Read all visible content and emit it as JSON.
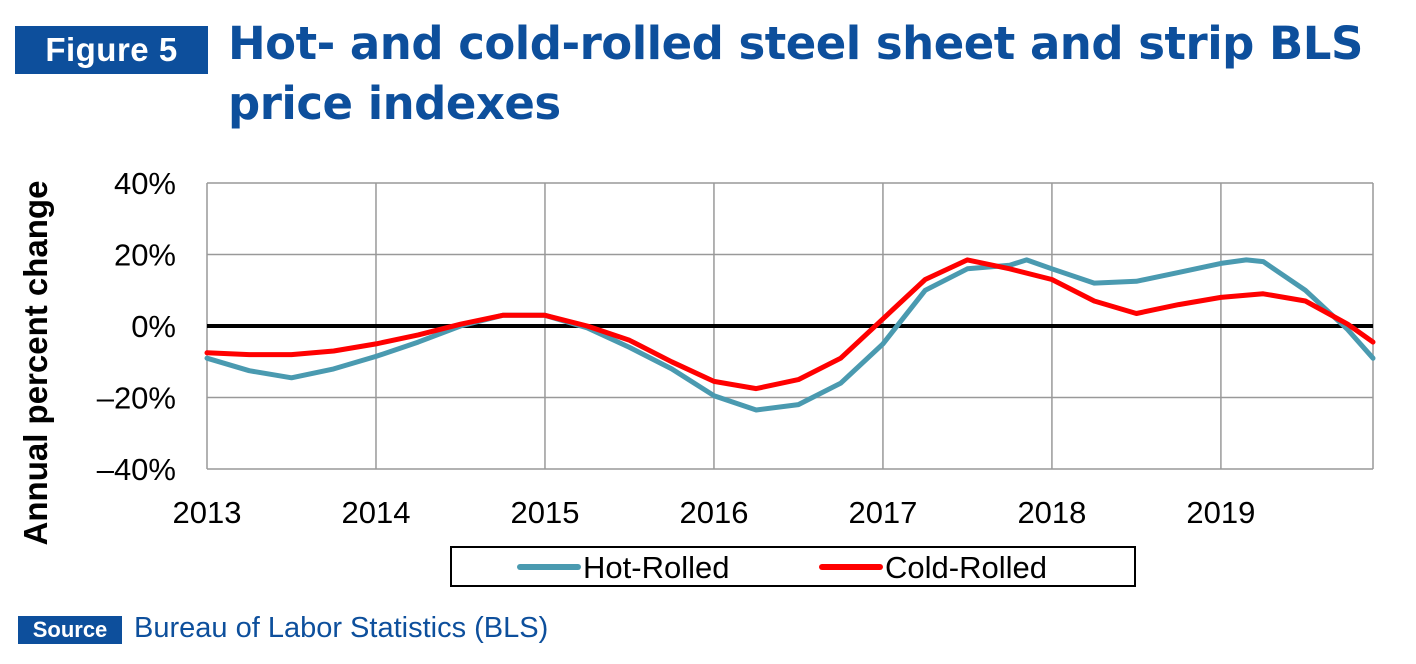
{
  "header": {
    "figure_label": "Figure 5",
    "title": "Hot- and cold-rolled steel sheet and strip BLS price indexes"
  },
  "footer": {
    "source_label": "Source",
    "source_text": "Bureau of Labor Statistics (BLS)"
  },
  "colors": {
    "brand": "#0d4f9c",
    "hot_rolled": "#4a9ab0",
    "cold_rolled": "#ff0000",
    "zero_line": "#000000",
    "grid": "#999999"
  },
  "chart_data": {
    "type": "line",
    "title": "",
    "ylabel": "Annual percent change",
    "xlabel": "",
    "xlim": [
      2013,
      2019.9
    ],
    "ylim": [
      -40,
      40
    ],
    "y_ticks": [
      40,
      20,
      0,
      -20,
      -40
    ],
    "y_tick_labels": [
      "40%",
      "20%",
      "0%",
      "–20%",
      "–40%"
    ],
    "x_ticks": [
      2013,
      2014,
      2015,
      2016,
      2017,
      2018,
      2019
    ],
    "x_tick_labels": [
      "2013",
      "2014",
      "2015",
      "2016",
      "2017",
      "2018",
      "2019"
    ],
    "grid": true,
    "legend_position": "bottom",
    "series": [
      {
        "name": "Hot-Rolled",
        "color": "#4a9ab0",
        "points": [
          [
            2013.0,
            -9
          ],
          [
            2013.25,
            -12.5
          ],
          [
            2013.5,
            -14.5
          ],
          [
            2013.75,
            -12
          ],
          [
            2014.0,
            -8.5
          ],
          [
            2014.25,
            -4.5
          ],
          [
            2014.5,
            0
          ],
          [
            2014.75,
            3
          ],
          [
            2015.0,
            3
          ],
          [
            2015.25,
            -0.5
          ],
          [
            2015.5,
            -6
          ],
          [
            2015.75,
            -12
          ],
          [
            2016.0,
            -19.5
          ],
          [
            2016.25,
            -23.5
          ],
          [
            2016.5,
            -22
          ],
          [
            2016.75,
            -16
          ],
          [
            2017.0,
            -5
          ],
          [
            2017.25,
            10
          ],
          [
            2017.5,
            16
          ],
          [
            2017.75,
            17
          ],
          [
            2017.85,
            18.5
          ],
          [
            2018.0,
            16
          ],
          [
            2018.25,
            12
          ],
          [
            2018.5,
            12.5
          ],
          [
            2018.75,
            15
          ],
          [
            2019.0,
            17.5
          ],
          [
            2019.15,
            18.5
          ],
          [
            2019.25,
            18
          ],
          [
            2019.5,
            10
          ],
          [
            2019.75,
            -1
          ],
          [
            2019.9,
            -9
          ]
        ]
      },
      {
        "name": "Cold-Rolled",
        "color": "#ff0000",
        "points": [
          [
            2013.0,
            -7.5
          ],
          [
            2013.25,
            -8
          ],
          [
            2013.5,
            -8
          ],
          [
            2013.75,
            -7
          ],
          [
            2014.0,
            -5
          ],
          [
            2014.25,
            -2.5
          ],
          [
            2014.5,
            0.5
          ],
          [
            2014.75,
            3
          ],
          [
            2015.0,
            3
          ],
          [
            2015.25,
            0
          ],
          [
            2015.5,
            -4
          ],
          [
            2015.75,
            -10
          ],
          [
            2016.0,
            -15.5
          ],
          [
            2016.25,
            -17.5
          ],
          [
            2016.5,
            -15
          ],
          [
            2016.75,
            -9
          ],
          [
            2017.0,
            2
          ],
          [
            2017.25,
            13
          ],
          [
            2017.5,
            18.5
          ],
          [
            2017.75,
            16
          ],
          [
            2018.0,
            13
          ],
          [
            2018.25,
            7
          ],
          [
            2018.5,
            3.5
          ],
          [
            2018.75,
            6
          ],
          [
            2019.0,
            8
          ],
          [
            2019.25,
            9
          ],
          [
            2019.5,
            7
          ],
          [
            2019.75,
            0.5
          ],
          [
            2019.9,
            -4.5
          ]
        ]
      }
    ]
  }
}
